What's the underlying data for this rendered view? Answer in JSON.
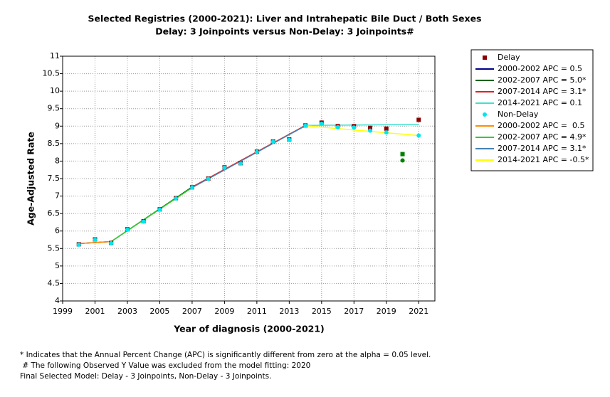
{
  "chart_data": {
    "type": "line",
    "title": "Selected Registries (2000-2021): Liver and Intrahepatic Bile Duct / Both Sexes",
    "subtitle": "Delay: 3 Joinpoints  versus  Non-Delay: 3 Joinpoints#",
    "x_label": "Year of diagnosis (2000-2021)",
    "y_label": "Age-Adjusted Rate",
    "xlim": [
      1999,
      2022
    ],
    "xticks": [
      1999,
      2001,
      2003,
      2005,
      2007,
      2009,
      2011,
      2013,
      2015,
      2017,
      2019,
      2021
    ],
    "ylim": [
      4,
      11
    ],
    "yticks": [
      4,
      4.5,
      5,
      5.5,
      6,
      6.5,
      7,
      7.5,
      8,
      8.5,
      9,
      9.5,
      10,
      10.5,
      11
    ],
    "grid": true,
    "series": [
      {
        "name": "Delay",
        "kind": "marker",
        "marker": "square",
        "color": "#8b0000",
        "x": [
          2000,
          2001,
          2002,
          2003,
          2004,
          2005,
          2006,
          2007,
          2008,
          2009,
          2010,
          2011,
          2012,
          2013,
          2014,
          2015,
          2016,
          2017,
          2018,
          2019,
          2020,
          2021
        ],
        "values": [
          5.62,
          5.76,
          5.66,
          6.05,
          6.28,
          6.62,
          6.94,
          7.25,
          7.5,
          7.82,
          7.94,
          8.27,
          8.56,
          8.62,
          9.02,
          9.1,
          9.0,
          9.0,
          8.95,
          8.93,
          8.2,
          9.18
        ],
        "marker_colors": [
          "#8b0000",
          "#8b0000",
          "#8b0000",
          "#8b0000",
          "#8b0000",
          "#8b0000",
          "#8b0000",
          "#8b0000",
          "#8b0000",
          "#8b0000",
          "#8b0000",
          "#8b0000",
          "#8b0000",
          "#8b0000",
          "#8b0000",
          "#8b0000",
          "#8b0000",
          "#8b0000",
          "#8b0000",
          "#8b0000",
          "#008000",
          "#8b0000"
        ]
      },
      {
        "name": "2000-2002 APC = 0.5",
        "kind": "line",
        "color": "#00008b",
        "x": [
          2000,
          2002
        ],
        "values": [
          5.64,
          5.7
        ]
      },
      {
        "name": "2002-2007 APC = 5.0*",
        "kind": "line",
        "color": "#006400",
        "x": [
          2002,
          2007
        ],
        "values": [
          5.7,
          7.26
        ]
      },
      {
        "name": "2007-2014 APC = 3.1*",
        "kind": "line",
        "color": "#e02020",
        "x": [
          2007,
          2014
        ],
        "values": [
          7.26,
          9.02
        ]
      },
      {
        "name": "2014-2021 APC = 0.1",
        "kind": "line",
        "color": "#40e0d0",
        "x": [
          2014,
          2021
        ],
        "values": [
          9.02,
          9.05
        ]
      },
      {
        "name": "Non-Delay",
        "kind": "marker",
        "marker": "circle",
        "color": "#00e5ee",
        "x": [
          2000,
          2001,
          2002,
          2003,
          2004,
          2005,
          2006,
          2007,
          2008,
          2009,
          2010,
          2011,
          2012,
          2013,
          2014,
          2015,
          2016,
          2017,
          2018,
          2019,
          2020,
          2021
        ],
        "values": [
          5.61,
          5.75,
          5.65,
          6.04,
          6.27,
          6.61,
          6.93,
          7.24,
          7.49,
          7.81,
          7.93,
          8.26,
          8.55,
          8.61,
          9.01,
          9.07,
          8.97,
          8.96,
          8.87,
          8.82,
          8.02,
          8.73
        ],
        "marker_colors": [
          "#00e5ee",
          "#00e5ee",
          "#00e5ee",
          "#00e5ee",
          "#00e5ee",
          "#00e5ee",
          "#00e5ee",
          "#00e5ee",
          "#00e5ee",
          "#00e5ee",
          "#00e5ee",
          "#00e5ee",
          "#00e5ee",
          "#00e5ee",
          "#00e5ee",
          "#00e5ee",
          "#00e5ee",
          "#00e5ee",
          "#00e5ee",
          "#00e5ee",
          "#008000",
          "#00e5ee"
        ]
      },
      {
        "name": "2000-2002 APC =  0.5",
        "kind": "line",
        "color": "#ff8c00",
        "x": [
          2000,
          2002
        ],
        "values": [
          5.64,
          5.7
        ]
      },
      {
        "name": "2002-2007 APC = 4.9*",
        "kind": "line",
        "color": "#32cd32",
        "x": [
          2002,
          2007
        ],
        "values": [
          5.7,
          7.24
        ]
      },
      {
        "name": "2007-2014 APC = 3.1*",
        "kind": "line",
        "color": "#4682b4",
        "x": [
          2007,
          2014
        ],
        "values": [
          7.24,
          9.01
        ]
      },
      {
        "name": "2014-2021 APC = -0.5*",
        "kind": "line",
        "color": "#ffff00",
        "x": [
          2014,
          2021
        ],
        "values": [
          9.01,
          8.73
        ]
      }
    ],
    "notes": [
      "* Indicates that the Annual Percent Change (APC) is significantly different from zero at the alpha = 0.05 level.",
      " # The following Observed Y Value was excluded from the model fitting: 2020",
      "Final Selected Model: Delay - 3 Joinpoints, Non-Delay - 3 Joinpoints."
    ]
  }
}
